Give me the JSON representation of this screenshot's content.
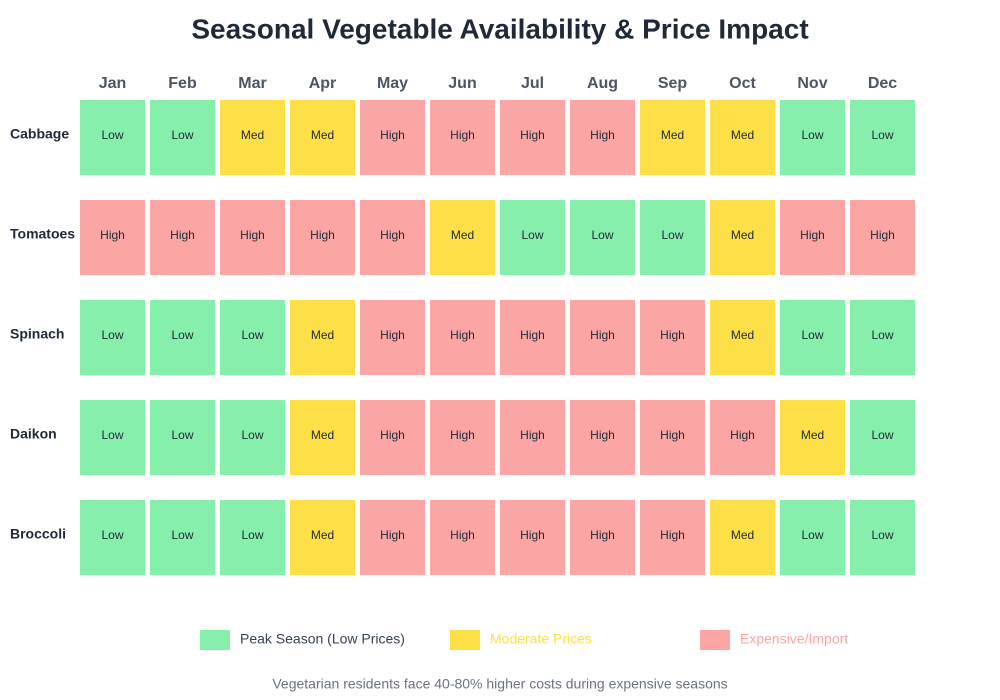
{
  "title": "Seasonal Vegetable Availability & Price Impact",
  "grid": {
    "months": [
      "Jan",
      "Feb",
      "Mar",
      "Apr",
      "May",
      "Jun",
      "Jul",
      "Aug",
      "Sep",
      "Oct",
      "Nov",
      "Dec"
    ],
    "scale": [
      "Low",
      "Med",
      "High"
    ],
    "rows": [
      {
        "name": "Cabbage",
        "cells": [
          "Low",
          "Low",
          "Med",
          "Med",
          "High",
          "High",
          "High",
          "High",
          "Med",
          "Med",
          "Low",
          "Low"
        ]
      },
      {
        "name": "Tomatoes",
        "cells": [
          "High",
          "High",
          "High",
          "High",
          "High",
          "Med",
          "Low",
          "Low",
          "Low",
          "Med",
          "High",
          "High"
        ]
      },
      {
        "name": "Spinach",
        "cells": [
          "Low",
          "Low",
          "Low",
          "Med",
          "High",
          "High",
          "High",
          "High",
          "High",
          "Med",
          "Low",
          "Low"
        ]
      },
      {
        "name": "Daikon",
        "cells": [
          "Low",
          "Low",
          "Low",
          "Med",
          "High",
          "High",
          "High",
          "High",
          "High",
          "High",
          "Med",
          "Low"
        ]
      },
      {
        "name": "Broccoli",
        "cells": [
          "Low",
          "Low",
          "Low",
          "Med",
          "High",
          "High",
          "High",
          "High",
          "High",
          "Med",
          "Low",
          "Low"
        ]
      }
    ]
  },
  "legend": [
    {
      "label": "Peak Season (Low Prices)",
      "color": "#86efac",
      "label_color": "#374151"
    },
    {
      "label": "Moderate Prices",
      "color": "#fde047",
      "label_color": "#fde047"
    },
    {
      "label": "Expensive/Import",
      "color": "#fca5a5",
      "label_color": "#fca5a5"
    }
  ],
  "footnote": "Vegetarian residents face 40-80% higher costs during expensive seasons"
}
